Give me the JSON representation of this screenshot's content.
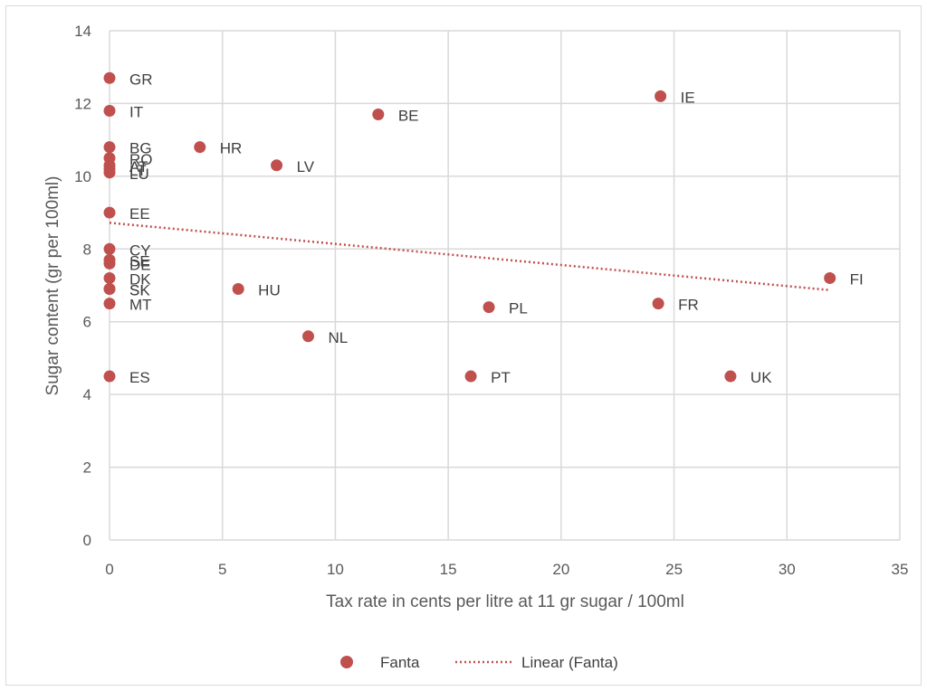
{
  "chart_data": {
    "type": "scatter",
    "xlabel": "Tax rate in cents per litre at 11 gr sugar / 100ml",
    "ylabel": "Sugar content (gr per 100ml)",
    "xlim": [
      0,
      35
    ],
    "ylim": [
      0,
      14
    ],
    "x_ticks": [
      0,
      5,
      10,
      15,
      20,
      25,
      30,
      35
    ],
    "y_ticks": [
      0,
      2,
      4,
      6,
      8,
      10,
      12,
      14
    ],
    "grid": true,
    "legend_position": "bottom",
    "colors": {
      "marker": "#c0504d",
      "trendline": "#c0504d",
      "grid": "#d9d9d9",
      "text": "#595959"
    },
    "series": [
      {
        "name": "Fanta",
        "points": [
          {
            "label": "GR",
            "x": 0,
            "y": 12.7
          },
          {
            "label": "IT",
            "x": 0,
            "y": 11.8
          },
          {
            "label": "BG",
            "x": 0,
            "y": 10.8
          },
          {
            "label": "RO",
            "x": 0,
            "y": 10.5
          },
          {
            "label": "AT",
            "x": 0,
            "y": 10.3
          },
          {
            "label": "LT",
            "x": 0,
            "y": 10.2
          },
          {
            "label": "LU",
            "x": 0,
            "y": 10.1
          },
          {
            "label": "EE",
            "x": 0,
            "y": 9.0
          },
          {
            "label": "CY",
            "x": 0,
            "y": 8.0
          },
          {
            "label": "SE",
            "x": 0,
            "y": 7.7
          },
          {
            "label": "DE",
            "x": 0,
            "y": 7.6
          },
          {
            "label": "DK",
            "x": 0,
            "y": 7.2
          },
          {
            "label": "SI",
            "x": 0,
            "y": 6.9
          },
          {
            "label": "SK",
            "x": 0,
            "y": 6.9
          },
          {
            "label": "MT",
            "x": 0,
            "y": 6.5
          },
          {
            "label": "ES",
            "x": 0,
            "y": 4.5
          },
          {
            "label": "HR",
            "x": 4.0,
            "y": 10.8
          },
          {
            "label": "LV",
            "x": 7.4,
            "y": 10.3
          },
          {
            "label": "HU",
            "x": 5.7,
            "y": 6.9
          },
          {
            "label": "NL",
            "x": 8.8,
            "y": 5.6
          },
          {
            "label": "BE",
            "x": 11.9,
            "y": 11.7
          },
          {
            "label": "PT",
            "x": 16.0,
            "y": 4.5
          },
          {
            "label": "PL",
            "x": 16.8,
            "y": 6.4
          },
          {
            "label": "IE",
            "x": 24.4,
            "y": 12.2
          },
          {
            "label": "FR",
            "x": 24.3,
            "y": 6.5
          },
          {
            "label": "UK",
            "x": 27.5,
            "y": 4.5
          },
          {
            "label": "FI",
            "x": 31.9,
            "y": 7.2
          }
        ]
      }
    ],
    "trendline": {
      "name": "Linear (Fanta)",
      "type": "linear",
      "x_range": [
        0,
        31.9
      ],
      "y_at_start": 8.72,
      "y_at_end": 6.87
    }
  }
}
